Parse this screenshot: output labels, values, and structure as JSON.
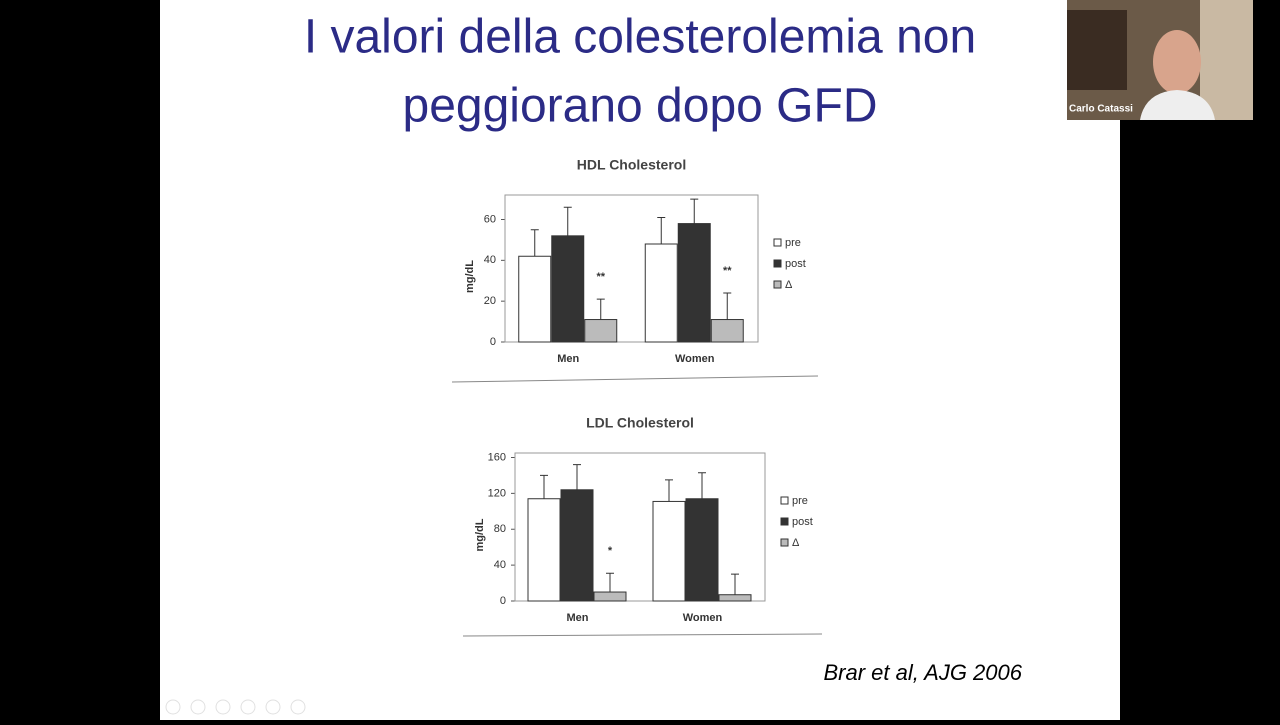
{
  "slide": {
    "title_line1": "I valori della colesterolemia non",
    "title_line2": "peggiorano dopo GFD",
    "citation": "Brar et al, AJG 2006"
  },
  "video": {
    "participant": "Carlo Catassi"
  },
  "chart_data": [
    {
      "type": "bar",
      "title": "HDL Cholesterol",
      "y_label": "mg/dL",
      "categories": [
        "Men",
        "Women"
      ],
      "series": [
        {
          "name": "pre",
          "color": "#ffffff",
          "values": [
            42,
            48
          ],
          "errors": [
            13,
            13
          ]
        },
        {
          "name": "post",
          "color": "#333333",
          "values": [
            52,
            58
          ],
          "errors": [
            14,
            12
          ]
        },
        {
          "name": "Δ",
          "color": "#bbbbbb",
          "values": [
            11,
            11
          ],
          "errors": [
            10,
            13
          ],
          "significance": [
            "**",
            "**"
          ]
        }
      ],
      "ylim": [
        0,
        72
      ],
      "yticks": [
        0,
        20,
        40,
        60
      ]
    },
    {
      "type": "bar",
      "title": "LDL Cholesterol",
      "y_label": "mg/dL",
      "categories": [
        "Men",
        "Women"
      ],
      "series": [
        {
          "name": "pre",
          "color": "#ffffff",
          "values": [
            114,
            111
          ],
          "errors": [
            26,
            24
          ]
        },
        {
          "name": "post",
          "color": "#333333",
          "values": [
            124,
            114
          ],
          "errors": [
            28,
            29
          ]
        },
        {
          "name": "Δ",
          "color": "#bbbbbb",
          "values": [
            10,
            7
          ],
          "errors": [
            21,
            23
          ],
          "significance": [
            "*",
            null
          ]
        }
      ],
      "ylim": [
        0,
        165
      ],
      "yticks": [
        0,
        40,
        80,
        120,
        160
      ]
    }
  ]
}
